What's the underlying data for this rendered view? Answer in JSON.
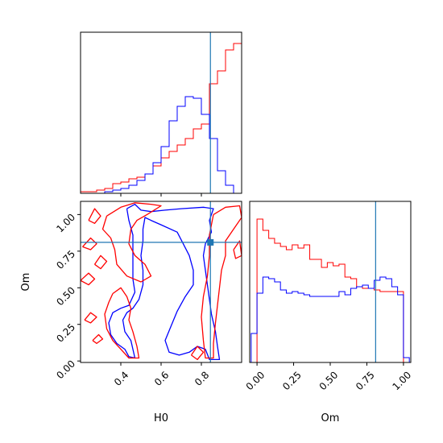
{
  "chart_data": [
    {
      "type": "histogram",
      "panel": "H0 marginal",
      "x_range": [
        0.2,
        1.0
      ],
      "truth": 0.845,
      "bin_edges": [
        0.2,
        0.24,
        0.28,
        0.32,
        0.36,
        0.4,
        0.44,
        0.48,
        0.52,
        0.56,
        0.6,
        0.64,
        0.68,
        0.72,
        0.76,
        0.8,
        0.84,
        0.88,
        0.92,
        0.96,
        1.0
      ],
      "series": [
        {
          "color": "#ff0000",
          "values": [
            0.01,
            0.01,
            0.02,
            0.03,
            0.06,
            0.07,
            0.09,
            0.1,
            0.12,
            0.17,
            0.22,
            0.26,
            0.3,
            0.34,
            0.4,
            0.43,
            0.68,
            0.76,
            0.89,
            0.93
          ]
        },
        {
          "color": "#0000ff",
          "values": [
            0.0,
            0.0,
            0.0,
            0.01,
            0.02,
            0.03,
            0.05,
            0.08,
            0.12,
            0.19,
            0.29,
            0.45,
            0.54,
            0.6,
            0.59,
            0.49,
            0.34,
            0.14,
            0.05,
            0.0
          ]
        }
      ]
    },
    {
      "type": "histogram",
      "panel": "Om marginal",
      "x_range": [
        -0.05,
        1.05
      ],
      "ticks": [
        "0.00",
        "0.25",
        "0.50",
        "0.75",
        "1.00"
      ],
      "xlabel": "Om",
      "truth": 0.81,
      "bin_edges": [
        -0.04,
        0.0,
        0.04,
        0.08,
        0.12,
        0.16,
        0.2,
        0.24,
        0.28,
        0.32,
        0.36,
        0.4,
        0.44,
        0.48,
        0.52,
        0.56,
        0.6,
        0.64,
        0.68,
        0.72,
        0.76,
        0.8,
        0.84,
        0.88,
        0.92,
        0.96,
        1.0,
        1.04
      ],
      "series": [
        {
          "color": "#ff0000",
          "values": [
            0.0,
            0.89,
            0.82,
            0.77,
            0.74,
            0.72,
            0.7,
            0.73,
            0.71,
            0.73,
            0.64,
            0.64,
            0.59,
            0.62,
            0.6,
            0.61,
            0.53,
            0.52,
            0.47,
            0.46,
            0.46,
            0.45,
            0.44,
            0.44,
            0.44,
            0.44,
            0.0
          ]
        },
        {
          "color": "#0000ff",
          "values": [
            0.18,
            0.43,
            0.53,
            0.52,
            0.5,
            0.45,
            0.43,
            0.44,
            0.43,
            0.42,
            0.41,
            0.41,
            0.41,
            0.41,
            0.41,
            0.44,
            0.42,
            0.46,
            0.47,
            0.48,
            0.46,
            0.51,
            0.53,
            0.52,
            0.47,
            0.42,
            0.03
          ]
        }
      ]
    },
    {
      "type": "contour",
      "panel": "H0 vs Om",
      "x_range": [
        0.2,
        1.0
      ],
      "y_range": [
        -0.01,
        1.09
      ],
      "xticks": [
        "0.4",
        "0.6",
        "0.8"
      ],
      "yticks": [
        "0.00",
        "0.25",
        "0.50",
        "0.75",
        "1.00"
      ],
      "xlabel": "H0",
      "ylabel": "Om",
      "truth": {
        "x": 0.845,
        "y": 0.81
      },
      "series": [
        {
          "color": "#0000ff",
          "contours": [
            [
              [
                0.43,
                1.04
              ],
              [
                0.47,
                1.07
              ],
              [
                0.5,
                1.03
              ],
              [
                0.55,
                1.02
              ],
              [
                0.62,
                1.03
              ],
              [
                0.7,
                1.04
              ],
              [
                0.81,
                1.05
              ],
              [
                0.86,
                1.04
              ],
              [
                0.84,
                0.96
              ],
              [
                0.85,
                0.88
              ],
              [
                0.82,
                0.8
              ],
              [
                0.81,
                0.72
              ],
              [
                0.82,
                0.62
              ],
              [
                0.83,
                0.52
              ],
              [
                0.84,
                0.42
              ],
              [
                0.85,
                0.32
              ],
              [
                0.87,
                0.2
              ],
              [
                0.88,
                0.1
              ],
              [
                0.89,
                0.01
              ],
              [
                0.84,
                0.01
              ],
              [
                0.82,
                0.08
              ],
              [
                0.78,
                0.1
              ],
              [
                0.74,
                0.06
              ],
              [
                0.69,
                0.04
              ],
              [
                0.64,
                0.06
              ],
              [
                0.62,
                0.14
              ],
              [
                0.65,
                0.24
              ],
              [
                0.68,
                0.34
              ],
              [
                0.72,
                0.44
              ],
              [
                0.76,
                0.52
              ],
              [
                0.76,
                0.62
              ],
              [
                0.74,
                0.72
              ],
              [
                0.71,
                0.8
              ],
              [
                0.68,
                0.88
              ],
              [
                0.6,
                0.93
              ],
              [
                0.55,
                0.96
              ],
              [
                0.52,
                0.98
              ],
              [
                0.51,
                0.9
              ],
              [
                0.51,
                0.82
              ],
              [
                0.5,
                0.72
              ],
              [
                0.51,
                0.62
              ],
              [
                0.51,
                0.52
              ],
              [
                0.49,
                0.42
              ],
              [
                0.46,
                0.36
              ],
              [
                0.43,
                0.33
              ],
              [
                0.41,
                0.28
              ],
              [
                0.42,
                0.2
              ],
              [
                0.45,
                0.14
              ],
              [
                0.46,
                0.08
              ],
              [
                0.47,
                0.02
              ],
              [
                0.44,
                0.03
              ],
              [
                0.42,
                0.08
              ],
              [
                0.38,
                0.12
              ],
              [
                0.35,
                0.18
              ],
              [
                0.34,
                0.26
              ],
              [
                0.36,
                0.33
              ],
              [
                0.4,
                0.36
              ],
              [
                0.44,
                0.38
              ],
              [
                0.47,
                0.47
              ],
              [
                0.46,
                0.56
              ],
              [
                0.46,
                0.66
              ],
              [
                0.46,
                0.76
              ],
              [
                0.46,
                0.86
              ],
              [
                0.44,
                0.96
              ],
              [
                0.43,
                1.04
              ]
            ]
          ]
        },
        {
          "color": "#ff0000",
          "contours": [
            [
              [
                0.33,
                0.99
              ],
              [
                0.4,
                1.05
              ],
              [
                0.47,
                1.08
              ],
              [
                0.55,
                1.07
              ],
              [
                0.6,
                1.06
              ],
              [
                0.53,
                1.0
              ],
              [
                0.48,
                0.96
              ],
              [
                0.45,
                0.9
              ],
              [
                0.44,
                0.8
              ],
              [
                0.47,
                0.72
              ],
              [
                0.52,
                0.66
              ],
              [
                0.55,
                0.58
              ],
              [
                0.5,
                0.54
              ],
              [
                0.43,
                0.58
              ],
              [
                0.38,
                0.66
              ],
              [
                0.37,
                0.76
              ],
              [
                0.35,
                0.84
              ],
              [
                0.31,
                0.9
              ],
              [
                0.33,
                0.99
              ]
            ],
            [
              [
                0.24,
                0.96
              ],
              [
                0.27,
                1.04
              ],
              [
                0.3,
                0.99
              ],
              [
                0.27,
                0.94
              ],
              [
                0.24,
                0.96
              ]
            ],
            [
              [
                0.21,
                0.78
              ],
              [
                0.25,
                0.84
              ],
              [
                0.28,
                0.8
              ],
              [
                0.25,
                0.76
              ],
              [
                0.21,
                0.78
              ]
            ],
            [
              [
                0.27,
                0.66
              ],
              [
                0.3,
                0.72
              ],
              [
                0.33,
                0.68
              ],
              [
                0.3,
                0.63
              ],
              [
                0.27,
                0.66
              ]
            ],
            [
              [
                0.2,
                0.55
              ],
              [
                0.24,
                0.6
              ],
              [
                0.27,
                0.56
              ],
              [
                0.24,
                0.52
              ],
              [
                0.2,
                0.55
              ]
            ],
            [
              [
                0.22,
                0.28
              ],
              [
                0.25,
                0.33
              ],
              [
                0.28,
                0.3
              ],
              [
                0.25,
                0.26
              ],
              [
                0.22,
                0.28
              ]
            ],
            [
              [
                0.26,
                0.14
              ],
              [
                0.29,
                0.18
              ],
              [
                0.31,
                0.15
              ],
              [
                0.28,
                0.12
              ],
              [
                0.26,
                0.14
              ]
            ],
            [
              [
                0.36,
                0.46
              ],
              [
                0.4,
                0.5
              ],
              [
                0.43,
                0.44
              ],
              [
                0.45,
                0.36
              ],
              [
                0.44,
                0.28
              ],
              [
                0.46,
                0.2
              ],
              [
                0.48,
                0.1
              ],
              [
                0.49,
                0.02
              ],
              [
                0.44,
                0.02
              ],
              [
                0.4,
                0.08
              ],
              [
                0.36,
                0.14
              ],
              [
                0.33,
                0.22
              ],
              [
                0.32,
                0.32
              ],
              [
                0.34,
                0.4
              ],
              [
                0.36,
                0.46
              ]
            ],
            [
              [
                0.86,
                1.0
              ],
              [
                0.92,
                1.05
              ],
              [
                0.99,
                1.06
              ],
              [
                1.0,
                0.98
              ],
              [
                0.96,
                0.9
              ],
              [
                0.92,
                0.82
              ],
              [
                0.92,
                0.72
              ],
              [
                0.9,
                0.62
              ],
              [
                0.89,
                0.5
              ],
              [
                0.88,
                0.38
              ],
              [
                0.87,
                0.26
              ],
              [
                0.86,
                0.12
              ],
              [
                0.86,
                0.02
              ],
              [
                0.82,
                0.02
              ],
              [
                0.81,
                0.14
              ],
              [
                0.8,
                0.3
              ],
              [
                0.81,
                0.44
              ],
              [
                0.83,
                0.58
              ],
              [
                0.84,
                0.72
              ],
              [
                0.84,
                0.86
              ],
              [
                0.86,
                1.0
              ]
            ],
            [
              [
                0.96,
                0.76
              ],
              [
                0.99,
                0.82
              ],
              [
                1.0,
                0.72
              ],
              [
                0.97,
                0.7
              ],
              [
                0.96,
                0.76
              ]
            ],
            [
              [
                0.75,
                0.04
              ],
              [
                0.78,
                0.1
              ],
              [
                0.81,
                0.06
              ],
              [
                0.78,
                0.01
              ],
              [
                0.75,
                0.04
              ]
            ]
          ]
        }
      ]
    }
  ]
}
